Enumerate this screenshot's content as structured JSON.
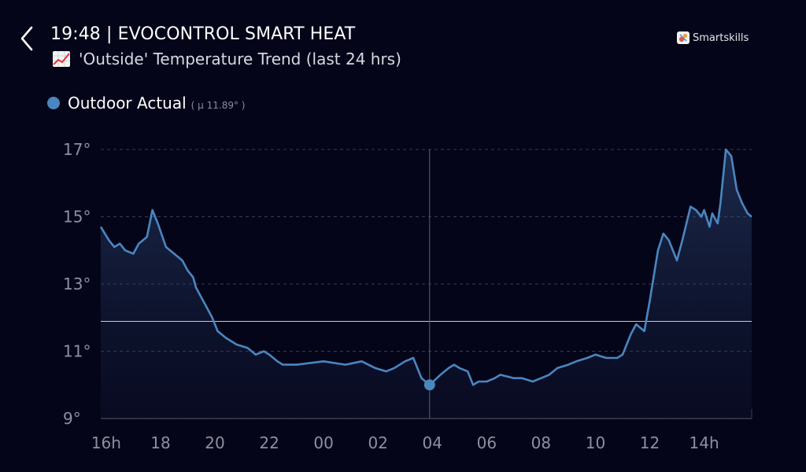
{
  "header": {
    "time": "19:48",
    "separator": "|",
    "app_title": "19:48 | EVOCONTROL SMART HEAT",
    "subtitle": "'Outside' Temperature Trend (last 24 hrs)",
    "subtitle_icon": "chart-increasing-icon",
    "back_icon": "chevron-left-icon"
  },
  "brand": {
    "name": "Smartskills",
    "icon": "smartskills-logo-icon"
  },
  "legend": {
    "series_name": "Outdoor Actual",
    "mean_text": "( µ 11.89° )",
    "color": "#4a86c0"
  },
  "chart_data": {
    "type": "area",
    "title": "'Outside' Temperature Trend (last 24 hrs)",
    "xlabel": "",
    "ylabel": "",
    "ylim": [
      9,
      17
    ],
    "xlim": [
      15.8,
      39.75
    ],
    "y_ticks": [
      {
        "value": 9,
        "label": "9°"
      },
      {
        "value": 11,
        "label": "11°"
      },
      {
        "value": 13,
        "label": "13°"
      },
      {
        "value": 15,
        "label": "15°"
      },
      {
        "value": 17,
        "label": "17°"
      }
    ],
    "x_ticks": [
      {
        "value": 16,
        "label": "16h"
      },
      {
        "value": 18,
        "label": "18"
      },
      {
        "value": 20,
        "label": "20"
      },
      {
        "value": 22,
        "label": "22"
      },
      {
        "value": 24,
        "label": "00"
      },
      {
        "value": 26,
        "label": "02"
      },
      {
        "value": 28,
        "label": "04"
      },
      {
        "value": 30,
        "label": "06"
      },
      {
        "value": 32,
        "label": "08"
      },
      {
        "value": 34,
        "label": "10"
      },
      {
        "value": 36,
        "label": "12"
      },
      {
        "value": 38,
        "label": "14h"
      }
    ],
    "mean": 11.89,
    "highlight": {
      "x": 27.9,
      "y": 10.0
    },
    "grid": true,
    "series": [
      {
        "name": "Outdoor Actual",
        "color": "#4a86c0",
        "x": [
          15.8,
          16.1,
          16.3,
          16.5,
          16.7,
          17.0,
          17.2,
          17.5,
          17.7,
          17.9,
          18.2,
          18.5,
          18.8,
          19.0,
          19.2,
          19.3,
          19.5,
          19.7,
          19.9,
          20.1,
          20.4,
          20.8,
          21.2,
          21.5,
          21.8,
          22.0,
          22.3,
          22.5,
          23.0,
          24.0,
          24.8,
          25.4,
          25.9,
          26.3,
          26.6,
          27.0,
          27.3,
          27.6,
          27.9,
          28.3,
          28.6,
          28.8,
          29.0,
          29.3,
          29.5,
          29.7,
          30.0,
          30.3,
          30.5,
          31.0,
          31.3,
          31.7,
          32.0,
          32.3,
          32.6,
          33.0,
          33.3,
          33.7,
          34.0,
          34.4,
          34.8,
          35.0,
          35.3,
          35.5,
          35.8,
          36.0,
          36.3,
          36.5,
          36.7,
          37.0,
          37.2,
          37.5,
          37.7,
          37.9,
          38.0,
          38.2,
          38.3,
          38.5,
          38.6,
          38.8,
          39.0,
          39.2,
          39.4,
          39.6,
          39.75
        ],
        "y": [
          14.7,
          14.3,
          14.1,
          14.2,
          14.0,
          13.9,
          14.2,
          14.4,
          15.2,
          14.8,
          14.1,
          13.9,
          13.7,
          13.4,
          13.2,
          12.9,
          12.6,
          12.3,
          12.0,
          11.6,
          11.4,
          11.2,
          11.1,
          10.9,
          11.0,
          10.9,
          10.7,
          10.6,
          10.6,
          10.7,
          10.6,
          10.7,
          10.5,
          10.4,
          10.5,
          10.7,
          10.8,
          10.2,
          10.0,
          10.3,
          10.5,
          10.6,
          10.5,
          10.4,
          10.0,
          10.1,
          10.1,
          10.2,
          10.3,
          10.2,
          10.2,
          10.1,
          10.2,
          10.3,
          10.5,
          10.6,
          10.7,
          10.8,
          10.9,
          10.8,
          10.8,
          10.9,
          11.5,
          11.8,
          11.6,
          12.5,
          14.0,
          14.5,
          14.3,
          13.7,
          14.3,
          15.3,
          15.2,
          15.0,
          15.2,
          14.7,
          15.1,
          14.8,
          15.4,
          17.0,
          16.8,
          15.8,
          15.4,
          15.1,
          15.0
        ]
      }
    ]
  }
}
